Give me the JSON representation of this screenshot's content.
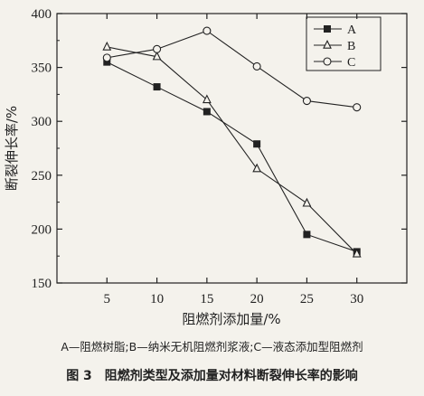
{
  "chart_data": {
    "type": "line",
    "x": [
      5,
      10,
      15,
      20,
      25,
      30
    ],
    "series": [
      {
        "name": "A",
        "marker": "square-filled",
        "values": [
          355,
          332,
          309,
          279,
          195,
          179
        ]
      },
      {
        "name": "B",
        "marker": "triangle-open",
        "values": [
          369,
          360,
          320,
          256,
          224,
          177
        ]
      },
      {
        "name": "C",
        "marker": "circle-open",
        "values": [
          359,
          367,
          384,
          351,
          319,
          313
        ]
      }
    ],
    "xlabel": "阻燃剂添加量/%",
    "ylabel": "断裂伸长率/%",
    "xticks": [
      "5",
      "10",
      "15",
      "20",
      "25",
      "30"
    ],
    "yticks": [
      "150",
      "200",
      "250",
      "300",
      "350",
      "400"
    ],
    "xlim": [
      0,
      35
    ],
    "ylim": [
      150,
      400
    ],
    "grid": false,
    "legend_position": "top-right",
    "color": "#222222"
  },
  "captions": {
    "legend_note": "A—阻燃树脂;B—纳米无机阻燃剂浆液;C—液态添加型阻燃剂",
    "figure_title": "图 3　阻燃剂类型及添加量对材料断裂伸长率的影响"
  }
}
